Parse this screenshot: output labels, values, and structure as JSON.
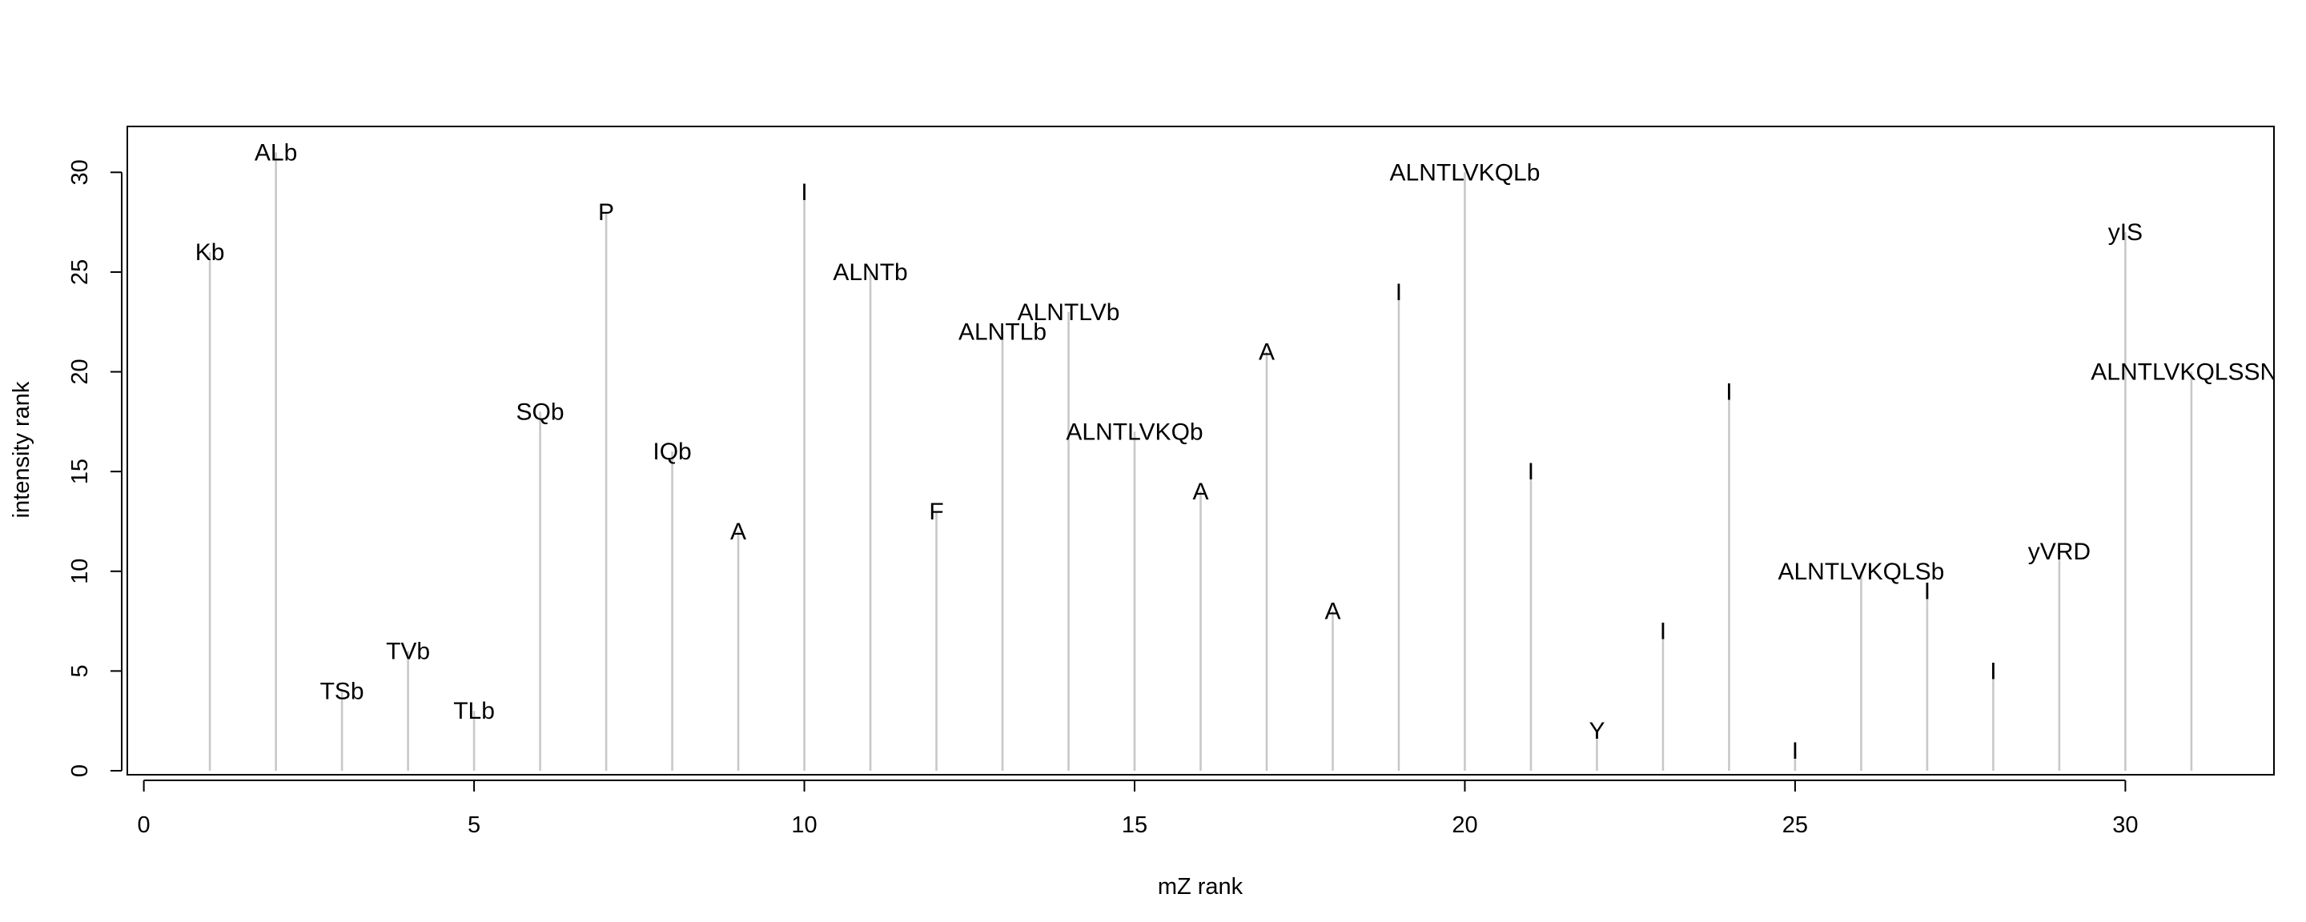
{
  "chart_data": {
    "type": "bar",
    "xlabel": "mZ rank",
    "ylabel": "intensity rank",
    "xlim": [
      -0.25,
      32.25
    ],
    "ylim": [
      -0.2,
      32.3
    ],
    "x_ticks": [
      0,
      5,
      10,
      15,
      20,
      25,
      30
    ],
    "y_ticks": [
      0,
      5,
      10,
      15,
      20,
      25,
      30
    ],
    "grid": false,
    "colors": {
      "stick": "#c8c8c8",
      "axis": "#000000",
      "background": "#ffffff"
    },
    "points": [
      {
        "x": 1,
        "y": 26,
        "label": "Kb"
      },
      {
        "x": 2,
        "y": 31,
        "label": "ALb"
      },
      {
        "x": 3,
        "y": 4,
        "label": "TSb"
      },
      {
        "x": 4,
        "y": 6,
        "label": "TVb"
      },
      {
        "x": 5,
        "y": 3,
        "label": "TLb"
      },
      {
        "x": 6,
        "y": 18,
        "label": "SQb"
      },
      {
        "x": 7,
        "y": 28,
        "label": "P"
      },
      {
        "x": 8,
        "y": 16,
        "label": "IQb"
      },
      {
        "x": 9,
        "y": 12,
        "label": "A"
      },
      {
        "x": 10,
        "y": 29,
        "label": "I"
      },
      {
        "x": 11,
        "y": 25,
        "label": "ALNTb"
      },
      {
        "x": 12,
        "y": 13,
        "label": "F"
      },
      {
        "x": 13,
        "y": 22,
        "label": "ALNTLb"
      },
      {
        "x": 14,
        "y": 23,
        "label": "ALNTLVb"
      },
      {
        "x": 15,
        "y": 17,
        "label": "ALNTLVKQb"
      },
      {
        "x": 16,
        "y": 14,
        "label": "A"
      },
      {
        "x": 17,
        "y": 21,
        "label": "A"
      },
      {
        "x": 18,
        "y": 8,
        "label": "A"
      },
      {
        "x": 19,
        "y": 24,
        "label": "I"
      },
      {
        "x": 20,
        "y": 30,
        "label": "ALNTLVKQLb"
      },
      {
        "x": 21,
        "y": 15,
        "label": "I"
      },
      {
        "x": 22,
        "y": 2,
        "label": "Y"
      },
      {
        "x": 23,
        "y": 7,
        "label": "I"
      },
      {
        "x": 24,
        "y": 19,
        "label": "I"
      },
      {
        "x": 25,
        "y": 1,
        "label": "I"
      },
      {
        "x": 26,
        "y": 10,
        "label": "ALNTLVKQLSb"
      },
      {
        "x": 27,
        "y": 9,
        "label": "I"
      },
      {
        "x": 28,
        "y": 5,
        "label": "I"
      },
      {
        "x": 29,
        "y": 11,
        "label": "yVRD"
      },
      {
        "x": 30,
        "y": 27,
        "label": "yIS"
      },
      {
        "x": 31,
        "y": 20,
        "label": "ALNTLVKQLSSNF"
      }
    ]
  }
}
